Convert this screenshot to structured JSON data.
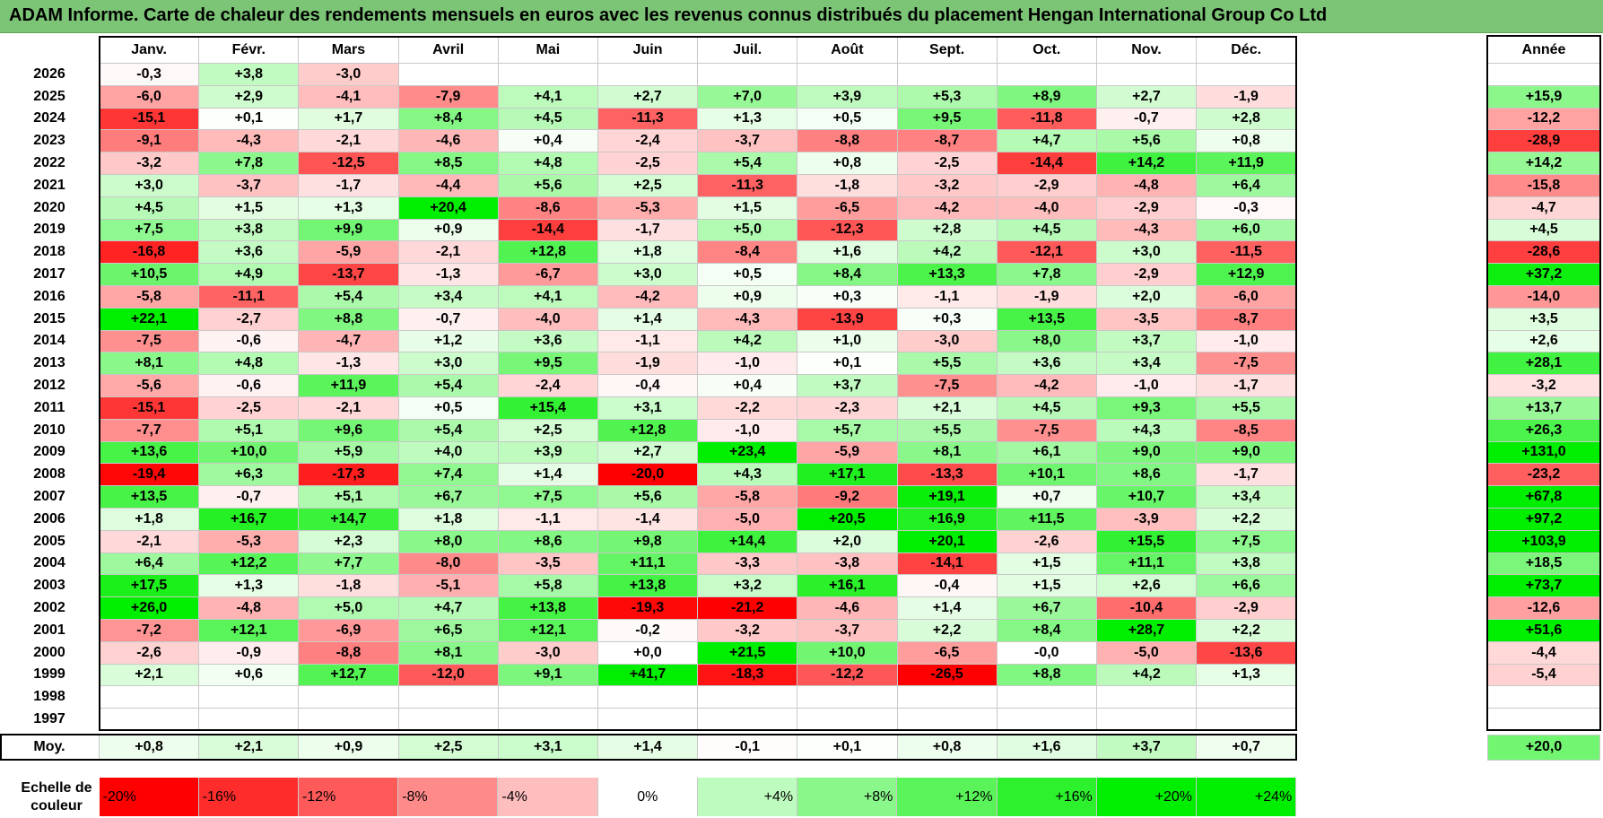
{
  "title": "ADAM Informe. Carte de chaleur des rendements mensuels en euros avec les revenus connus distribués du placement Hengan International Group Co Ltd",
  "chart_data": {
    "type": "heatmap",
    "title": "ADAM Informe. Carte de chaleur des rendements mensuels en euros avec les revenus connus distribués du placement Hengan International Group Co Ltd",
    "months": [
      "Janv.",
      "Févr.",
      "Mars",
      "Avril",
      "Mai",
      "Juin",
      "Juil.",
      "Août",
      "Sept.",
      "Oct.",
      "Nov.",
      "Déc."
    ],
    "year_header": "Année",
    "rows": [
      {
        "year": "2026",
        "months": [
          "-0,3",
          "+3,8",
          "-3,0",
          "",
          "",
          "",
          "",
          "",
          "",
          "",
          "",
          ""
        ],
        "annual": ""
      },
      {
        "year": "2025",
        "months": [
          "-6,0",
          "+2,9",
          "-4,1",
          "-7,9",
          "+4,1",
          "+2,7",
          "+7,0",
          "+3,9",
          "+5,3",
          "+8,9",
          "+2,7",
          "-1,9"
        ],
        "annual": "+15,9"
      },
      {
        "year": "2024",
        "months": [
          "-15,1",
          "+0,1",
          "+1,7",
          "+8,4",
          "+4,5",
          "-11,3",
          "+1,3",
          "+0,5",
          "+9,5",
          "-11,8",
          "-0,7",
          "+2,8"
        ],
        "annual": "-12,2"
      },
      {
        "year": "2023",
        "months": [
          "-9,1",
          "-4,3",
          "-2,1",
          "-4,6",
          "+0,4",
          "-2,4",
          "-3,7",
          "-8,8",
          "-8,7",
          "+4,7",
          "+5,6",
          "+0,8"
        ],
        "annual": "-28,9"
      },
      {
        "year": "2022",
        "months": [
          "-3,2",
          "+7,8",
          "-12,5",
          "+8,5",
          "+4,8",
          "-2,5",
          "+5,4",
          "+0,8",
          "-2,5",
          "-14,4",
          "+14,2",
          "+11,9"
        ],
        "annual": "+14,2"
      },
      {
        "year": "2021",
        "months": [
          "+3,0",
          "-3,7",
          "-1,7",
          "-4,4",
          "+5,6",
          "+2,5",
          "-11,3",
          "-1,8",
          "-3,2",
          "-2,9",
          "-4,8",
          "+6,4"
        ],
        "annual": "-15,8"
      },
      {
        "year": "2020",
        "months": [
          "+4,5",
          "+1,5",
          "+1,3",
          "+20,4",
          "-8,6",
          "-5,3",
          "+1,5",
          "-6,5",
          "-4,2",
          "-4,0",
          "-2,9",
          "-0,3"
        ],
        "annual": "-4,7"
      },
      {
        "year": "2019",
        "months": [
          "+7,5",
          "+3,8",
          "+9,9",
          "+0,9",
          "-14,4",
          "-1,7",
          "+5,0",
          "-12,3",
          "+2,8",
          "+4,5",
          "-4,3",
          "+6,0"
        ],
        "annual": "+4,5"
      },
      {
        "year": "2018",
        "months": [
          "-16,8",
          "+3,6",
          "-5,9",
          "-2,1",
          "+12,8",
          "+1,8",
          "-8,4",
          "+1,6",
          "+4,2",
          "-12,1",
          "+3,0",
          "-11,5"
        ],
        "annual": "-28,6"
      },
      {
        "year": "2017",
        "months": [
          "+10,5",
          "+4,9",
          "-13,7",
          "-1,3",
          "-6,7",
          "+3,0",
          "+0,5",
          "+8,4",
          "+13,3",
          "+7,8",
          "-2,9",
          "+12,9"
        ],
        "annual": "+37,2"
      },
      {
        "year": "2016",
        "months": [
          "-5,8",
          "-11,1",
          "+5,4",
          "+3,4",
          "+4,1",
          "-4,2",
          "+0,9",
          "+0,3",
          "-1,1",
          "-1,9",
          "+2,0",
          "-6,0"
        ],
        "annual": "-14,0"
      },
      {
        "year": "2015",
        "months": [
          "+22,1",
          "-2,7",
          "+8,8",
          "-0,7",
          "-4,0",
          "+1,4",
          "-4,3",
          "-13,9",
          "+0,3",
          "+13,5",
          "-3,5",
          "-8,7"
        ],
        "annual": "+3,5"
      },
      {
        "year": "2014",
        "months": [
          "-7,5",
          "-0,6",
          "-4,7",
          "+1,2",
          "+3,6",
          "-1,1",
          "+4,2",
          "+1,0",
          "-3,0",
          "+8,0",
          "+3,7",
          "-1,0"
        ],
        "annual": "+2,6"
      },
      {
        "year": "2013",
        "months": [
          "+8,1",
          "+4,8",
          "-1,3",
          "+3,0",
          "+9,5",
          "-1,9",
          "-1,0",
          "+0,1",
          "+5,5",
          "+3,6",
          "+3,4",
          "-7,5"
        ],
        "annual": "+28,1"
      },
      {
        "year": "2012",
        "months": [
          "-5,6",
          "-0,6",
          "+11,9",
          "+5,4",
          "-2,4",
          "-0,4",
          "+0,4",
          "+3,7",
          "-7,5",
          "-4,2",
          "-1,0",
          "-1,7"
        ],
        "annual": "-3,2"
      },
      {
        "year": "2011",
        "months": [
          "-15,1",
          "-2,5",
          "-2,1",
          "+0,5",
          "+15,4",
          "+3,1",
          "-2,2",
          "-2,3",
          "+2,1",
          "+4,5",
          "+9,3",
          "+5,5"
        ],
        "annual": "+13,7"
      },
      {
        "year": "2010",
        "months": [
          "-7,7",
          "+5,1",
          "+9,6",
          "+5,4",
          "+2,5",
          "+12,8",
          "-1,0",
          "+5,7",
          "+5,5",
          "-7,5",
          "+4,3",
          "-8,5"
        ],
        "annual": "+26,3"
      },
      {
        "year": "2009",
        "months": [
          "+13,6",
          "+10,0",
          "+5,9",
          "+4,0",
          "+3,9",
          "+2,7",
          "+23,4",
          "-5,9",
          "+8,1",
          "+6,1",
          "+9,0",
          "+9,0"
        ],
        "annual": "+131,0"
      },
      {
        "year": "2008",
        "months": [
          "-19,4",
          "+6,3",
          "-17,3",
          "+7,4",
          "+1,4",
          "-20,0",
          "+4,3",
          "+17,1",
          "-13,3",
          "+10,1",
          "+8,6",
          "-1,7"
        ],
        "annual": "-23,2"
      },
      {
        "year": "2007",
        "months": [
          "+13,5",
          "-0,7",
          "+5,1",
          "+6,7",
          "+7,5",
          "+5,6",
          "-5,8",
          "-9,2",
          "+19,1",
          "+0,7",
          "+10,7",
          "+3,4"
        ],
        "annual": "+67,8"
      },
      {
        "year": "2006",
        "months": [
          "+1,8",
          "+16,7",
          "+14,7",
          "+1,8",
          "-1,1",
          "-1,4",
          "-5,0",
          "+20,5",
          "+16,9",
          "+11,5",
          "-3,9",
          "+2,2"
        ],
        "annual": "+97,2"
      },
      {
        "year": "2005",
        "months": [
          "-2,1",
          "-5,3",
          "+2,3",
          "+8,0",
          "+8,6",
          "+9,8",
          "+14,4",
          "+2,0",
          "+20,1",
          "-2,6",
          "+15,5",
          "+7,5"
        ],
        "annual": "+103,9"
      },
      {
        "year": "2004",
        "months": [
          "+6,4",
          "+12,2",
          "+7,7",
          "-8,0",
          "-3,5",
          "+11,1",
          "-3,3",
          "-3,8",
          "-14,1",
          "+1,5",
          "+11,1",
          "+3,8"
        ],
        "annual": "+18,5"
      },
      {
        "year": "2003",
        "months": [
          "+17,5",
          "+1,3",
          "-1,8",
          "-5,1",
          "+5,8",
          "+13,8",
          "+3,2",
          "+16,1",
          "-0,4",
          "+1,5",
          "+2,6",
          "+6,6"
        ],
        "annual": "+73,7"
      },
      {
        "year": "2002",
        "months": [
          "+26,0",
          "-4,8",
          "+5,0",
          "+4,7",
          "+13,8",
          "-19,3",
          "-21,2",
          "-4,6",
          "+1,4",
          "+6,7",
          "-10,4",
          "-2,9"
        ],
        "annual": "-12,6"
      },
      {
        "year": "2001",
        "months": [
          "-7,2",
          "+12,1",
          "-6,9",
          "+6,5",
          "+12,1",
          "-0,2",
          "-3,2",
          "-3,7",
          "+2,2",
          "+8,4",
          "+28,7",
          "+2,2"
        ],
        "annual": "+51,6"
      },
      {
        "year": "2000",
        "months": [
          "-2,6",
          "-0,9",
          "-8,8",
          "+8,1",
          "-3,0",
          "+0,0",
          "+21,5",
          "+10,0",
          "-6,5",
          "-0,0",
          "-5,0",
          "-13,6"
        ],
        "annual": "-4,4"
      },
      {
        "year": "1999",
        "months": [
          "+2,1",
          "+0,6",
          "+12,7",
          "-12,0",
          "+9,1",
          "+41,7",
          "-18,3",
          "-12,2",
          "-26,5",
          "+8,8",
          "+4,2",
          "+1,3"
        ],
        "annual": "-5,4"
      },
      {
        "year": "1998",
        "months": [
          "",
          "",
          "",
          "",
          "",
          "",
          "",
          "",
          "",
          "",
          "",
          ""
        ],
        "annual": ""
      },
      {
        "year": "1997",
        "months": [
          "",
          "",
          "",
          "",
          "",
          "",
          "",
          "",
          "",
          "",
          "",
          ""
        ],
        "annual": ""
      }
    ],
    "average": {
      "label": "Moy.",
      "months": [
        "+0,8",
        "+2,1",
        "+0,9",
        "+2,5",
        "+3,1",
        "+1,4",
        "-0,1",
        "+0,1",
        "+0,8",
        "+1,6",
        "+3,7",
        "+0,7"
      ],
      "annual": "+20,0"
    },
    "color_scale": {
      "label": "Echelle de couleur",
      "steps": [
        "-20%",
        "-16%",
        "-12%",
        "-8%",
        "-4%",
        "0%",
        "+4%",
        "+8%",
        "+12%",
        "+16%",
        "+20%",
        "+24%"
      ],
      "negative_color": "#ff0000",
      "positive_color": "#00ee00",
      "neutral_color": "#ffffff"
    }
  }
}
